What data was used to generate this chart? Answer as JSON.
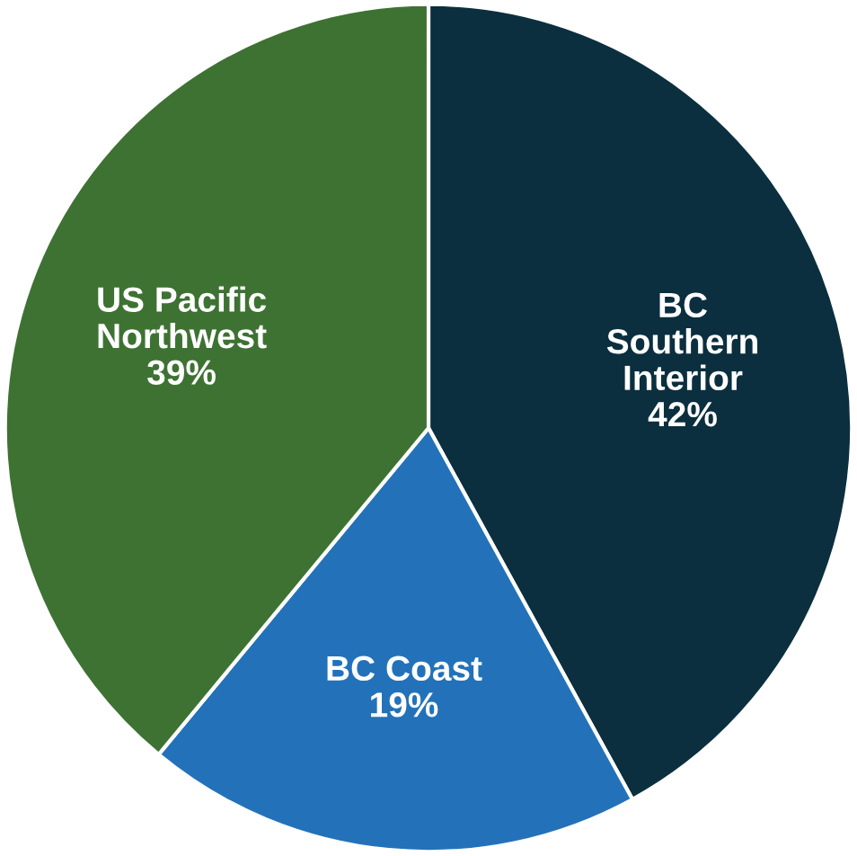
{
  "chart_data": {
    "type": "pie",
    "categories": [
      "BC\nSouthern\nInterior",
      "BC Coast",
      "US Pacific\nNorthwest"
    ],
    "values": [
      42,
      19,
      39
    ],
    "value_labels": [
      "42%",
      "19%",
      "39%"
    ],
    "colors": [
      "#0b2f3e",
      "#2372b9",
      "#3e7233"
    ]
  }
}
